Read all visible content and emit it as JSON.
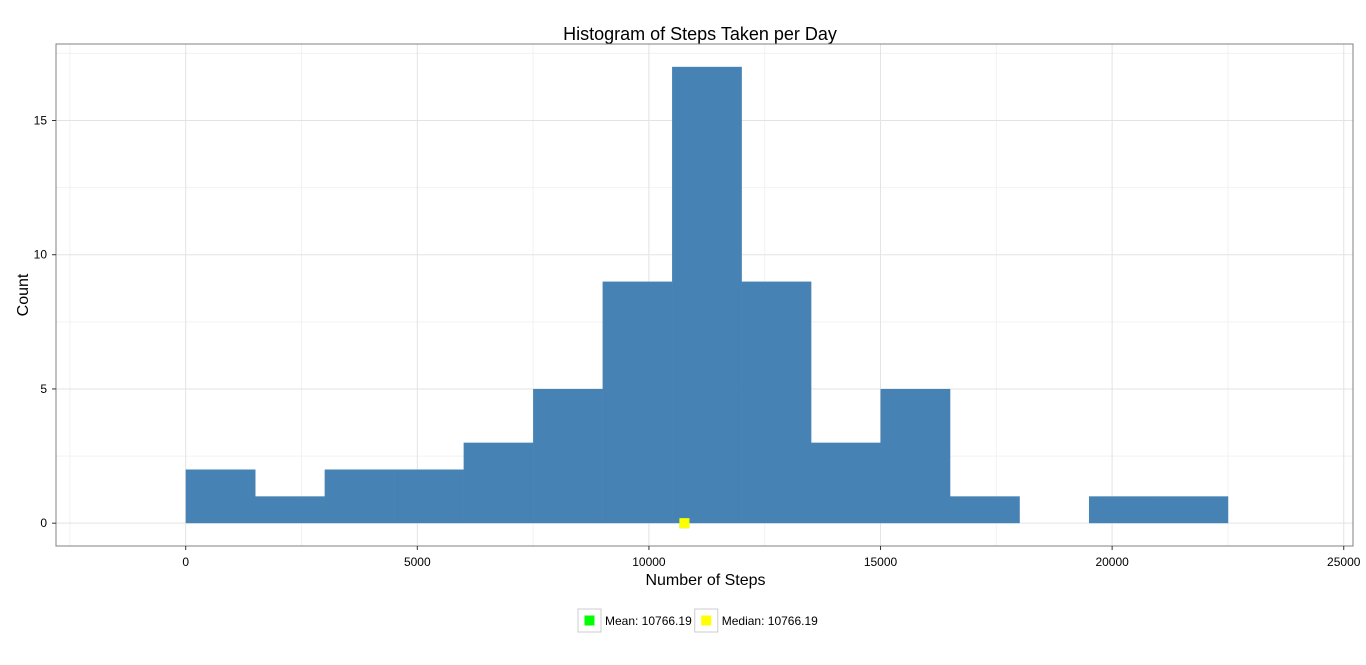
{
  "chart_data": {
    "type": "bar",
    "title": "Histogram of Steps Taken per Day",
    "xlabel": "Number of Steps",
    "ylabel": "Count",
    "xlim": [
      -2800,
      25200
    ],
    "ylim": [
      -0.85,
      17.85
    ],
    "x_ticks": [
      0,
      5000,
      10000,
      15000,
      20000,
      25000
    ],
    "x_tick_labels": [
      "0",
      "5000",
      "10000",
      "15000",
      "20000",
      "25000"
    ],
    "y_ticks": [
      0,
      5,
      10,
      15
    ],
    "y_tick_labels": [
      "0",
      "5",
      "10",
      "15"
    ],
    "grid": true,
    "bin_width": 1500,
    "bins": [
      {
        "x0": 0,
        "x1": 1500,
        "count": 2
      },
      {
        "x0": 1500,
        "x1": 3000,
        "count": 1
      },
      {
        "x0": 3000,
        "x1": 4500,
        "count": 2
      },
      {
        "x0": 4500,
        "x1": 6000,
        "count": 2
      },
      {
        "x0": 6000,
        "x1": 7500,
        "count": 3
      },
      {
        "x0": 7500,
        "x1": 9000,
        "count": 5
      },
      {
        "x0": 9000,
        "x1": 10500,
        "count": 9
      },
      {
        "x0": 10500,
        "x1": 12000,
        "count": 17
      },
      {
        "x0": 12000,
        "x1": 13500,
        "count": 9
      },
      {
        "x0": 13500,
        "x1": 15000,
        "count": 3
      },
      {
        "x0": 15000,
        "x1": 16500,
        "count": 5
      },
      {
        "x0": 16500,
        "x1": 18000,
        "count": 1
      },
      {
        "x0": 18000,
        "x1": 19500,
        "count": 0
      },
      {
        "x0": 19500,
        "x1": 21000,
        "count": 1
      },
      {
        "x0": 21000,
        "x1": 22500,
        "count": 1
      }
    ],
    "bar_color": "#4682B4",
    "markers": [
      {
        "name": "Mean",
        "x": 10766.19,
        "y": 0,
        "color": "#00FF00"
      },
      {
        "name": "Median",
        "x": 10766.19,
        "y": 0,
        "color": "#FFFF00"
      }
    ],
    "legend": {
      "placement": "bottom",
      "items": [
        {
          "label": "Mean: 10766.19",
          "color": "#00FF00"
        },
        {
          "label": "Median: 10766.19",
          "color": "#FFFF00"
        }
      ]
    }
  }
}
